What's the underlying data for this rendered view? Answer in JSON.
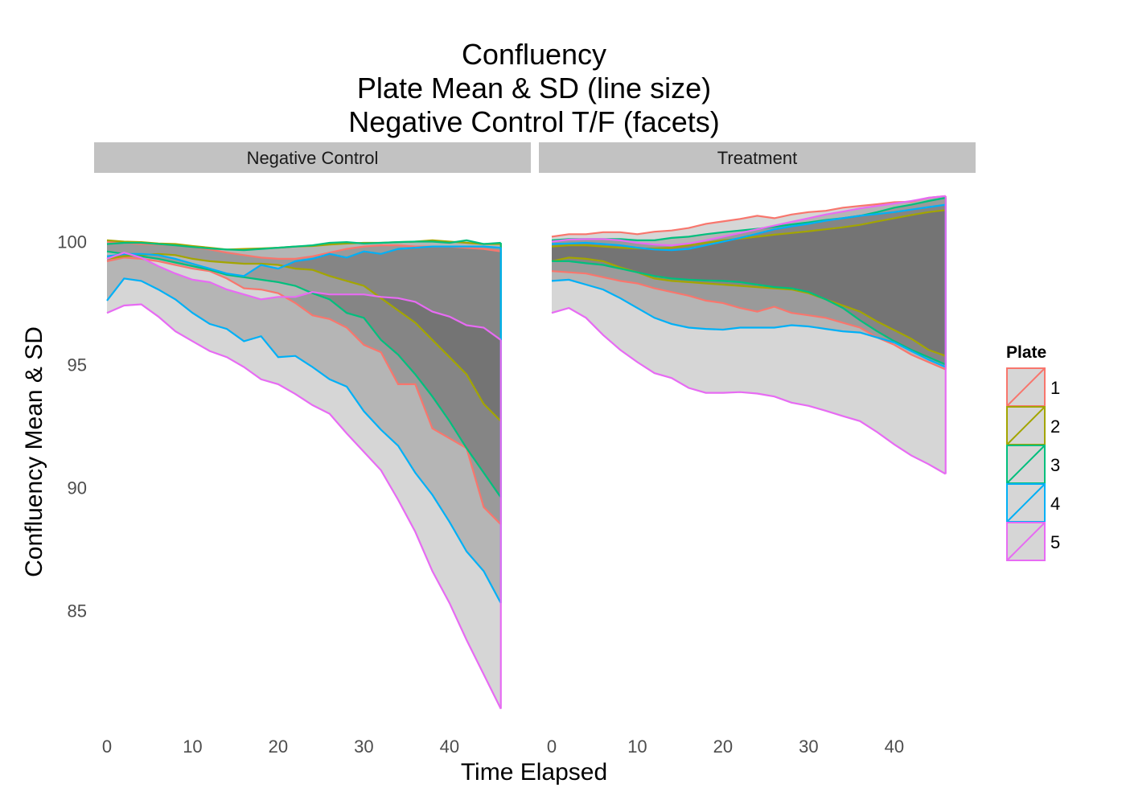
{
  "chart_data": {
    "type": "area",
    "title": [
      "Confluency",
      "Plate Mean & SD (line size)",
      "Negative Control T/F (facets)"
    ],
    "xlabel": "Time Elapsed",
    "ylabel": "Confluency Mean & SD",
    "xlim": [
      -1.5,
      49.5
    ],
    "ylim": [
      80.4,
      102.5
    ],
    "x_ticks": [
      0,
      10,
      20,
      30,
      40
    ],
    "y_ticks": [
      85,
      90,
      95,
      100
    ],
    "grid": false,
    "legend": {
      "title": "Plate",
      "position": "right",
      "items": [
        {
          "label": "1",
          "color": "#F8766D"
        },
        {
          "label": "2",
          "color": "#A3A500"
        },
        {
          "label": "3",
          "color": "#00BF7D"
        },
        {
          "label": "4",
          "color": "#00B0F6"
        },
        {
          "label": "5",
          "color": "#E76BF3"
        }
      ]
    },
    "x": [
      0,
      2,
      4,
      6,
      8,
      10,
      12,
      14,
      16,
      18,
      20,
      22,
      24,
      26,
      28,
      30,
      32,
      34,
      36,
      38,
      40,
      42,
      44,
      46
    ],
    "facets": [
      {
        "label": "Negative Control",
        "series": [
          {
            "name": "1",
            "color": "#F8766D",
            "upper": [
              100.0,
              99.95,
              99.9,
              99.88,
              99.85,
              99.78,
              99.68,
              99.55,
              99.45,
              99.35,
              99.3,
              99.3,
              99.4,
              99.55,
              99.7,
              99.8,
              99.85,
              99.85,
              99.8,
              99.8,
              99.8,
              99.75,
              99.7,
              99.6
            ],
            "lower": [
              99.2,
              99.35,
              99.3,
              99.2,
              99.05,
              98.9,
              98.8,
              98.5,
              98.1,
              98.05,
              97.9,
              97.5,
              97.0,
              96.85,
              96.5,
              95.8,
              95.5,
              94.2,
              94.2,
              92.4,
              92.0,
              91.6,
              89.2,
              88.5
            ]
          },
          {
            "name": "2",
            "color": "#A3A500",
            "upper": [
              100.05,
              100.0,
              99.98,
              99.92,
              99.9,
              99.82,
              99.75,
              99.68,
              99.7,
              99.72,
              99.75,
              99.8,
              99.82,
              99.88,
              99.92,
              99.95,
              99.95,
              99.98,
              100.0,
              100.05,
              100.0,
              99.95,
              99.9,
              99.9
            ],
            "lower": [
              99.3,
              99.4,
              99.45,
              99.5,
              99.45,
              99.3,
              99.2,
              99.15,
              99.1,
              99.1,
              99.05,
              98.9,
              98.85,
              98.6,
              98.4,
              98.2,
              97.7,
              97.2,
              96.7,
              96.0,
              95.3,
              94.6,
              93.4,
              92.7
            ]
          },
          {
            "name": "3",
            "color": "#00BF7D",
            "upper": [
              99.9,
              99.95,
              99.95,
              99.9,
              99.85,
              99.78,
              99.72,
              99.68,
              99.65,
              99.7,
              99.75,
              99.8,
              99.85,
              99.95,
              99.98,
              99.92,
              99.95,
              99.98,
              100.0,
              100.0,
              99.95,
              100.05,
              99.9,
              99.95
            ],
            "lower": [
              99.6,
              99.5,
              99.4,
              99.3,
              99.15,
              99.0,
              98.85,
              98.65,
              98.55,
              98.45,
              98.35,
              98.2,
              97.9,
              97.65,
              97.1,
              96.9,
              96.0,
              95.4,
              94.6,
              93.7,
              92.7,
              91.6,
              90.6,
              89.6
            ]
          },
          {
            "name": "4",
            "color": "#00B0F6",
            "upper": [
              99.4,
              99.5,
              99.5,
              99.45,
              99.3,
              99.1,
              98.9,
              98.7,
              98.6,
              99.05,
              98.9,
              99.2,
              99.3,
              99.5,
              99.35,
              99.6,
              99.5,
              99.7,
              99.75,
              99.8,
              99.8,
              99.8,
              99.8,
              99.75
            ],
            "lower": [
              97.6,
              98.5,
              98.4,
              98.05,
              97.65,
              97.1,
              96.65,
              96.45,
              95.95,
              96.15,
              95.3,
              95.35,
              94.9,
              94.4,
              94.1,
              93.1,
              92.35,
              91.7,
              90.6,
              89.7,
              88.6,
              87.4,
              86.6,
              85.3
            ]
          },
          {
            "name": "5",
            "color": "#E76BF3",
            "upper": [
              99.3,
              99.55,
              99.35,
              99.0,
              98.7,
              98.45,
              98.35,
              98.05,
              97.85,
              97.65,
              97.75,
              97.75,
              97.95,
              97.85,
              97.85,
              97.85,
              97.75,
              97.7,
              97.55,
              97.15,
              96.95,
              96.6,
              96.5,
              96.0
            ],
            "lower": [
              97.1,
              97.4,
              97.45,
              96.95,
              96.35,
              95.95,
              95.55,
              95.3,
              94.9,
              94.4,
              94.2,
              93.8,
              93.35,
              93.0,
              92.2,
              91.45,
              90.7,
              89.5,
              88.2,
              86.6,
              85.3,
              83.8,
              82.4,
              81.0
            ]
          }
        ]
      },
      {
        "label": "Treatment",
        "series": [
          {
            "name": "1",
            "color": "#F8766D",
            "upper": [
              100.2,
              100.3,
              100.3,
              100.38,
              100.38,
              100.3,
              100.4,
              100.45,
              100.55,
              100.72,
              100.82,
              100.92,
              101.05,
              100.95,
              101.1,
              101.2,
              101.25,
              101.38,
              101.45,
              101.52,
              101.6,
              101.62,
              101.78,
              101.85
            ],
            "lower": [
              98.8,
              98.75,
              98.7,
              98.55,
              98.4,
              98.3,
              98.1,
              97.95,
              97.8,
              97.6,
              97.5,
              97.3,
              97.15,
              97.35,
              97.1,
              97.0,
              96.9,
              96.7,
              96.5,
              96.1,
              95.8,
              95.4,
              95.1,
              94.8
            ]
          },
          {
            "name": "2",
            "color": "#A3A500",
            "upper": [
              99.8,
              99.85,
              99.85,
              99.8,
              99.75,
              99.72,
              99.72,
              99.75,
              99.85,
              99.95,
              100.05,
              100.12,
              100.2,
              100.28,
              100.35,
              100.42,
              100.5,
              100.58,
              100.68,
              100.82,
              100.95,
              101.08,
              101.2,
              101.28
            ],
            "lower": [
              99.2,
              99.35,
              99.3,
              99.2,
              98.95,
              98.75,
              98.5,
              98.4,
              98.35,
              98.3,
              98.25,
              98.2,
              98.15,
              98.1,
              98.05,
              97.9,
              97.65,
              97.4,
              97.15,
              96.75,
              96.4,
              96.05,
              95.6,
              95.35
            ]
          },
          {
            "name": "3",
            "color": "#00BF7D",
            "upper": [
              100.05,
              100.1,
              100.1,
              100.1,
              100.1,
              100.05,
              100.05,
              100.15,
              100.2,
              100.3,
              100.38,
              100.45,
              100.52,
              100.6,
              100.7,
              100.78,
              100.88,
              100.95,
              101.05,
              101.2,
              101.38,
              101.5,
              101.65,
              101.78
            ],
            "lower": [
              99.2,
              99.2,
              99.12,
              99.05,
              98.9,
              98.75,
              98.6,
              98.5,
              98.45,
              98.42,
              98.4,
              98.35,
              98.25,
              98.15,
              98.1,
              97.95,
              97.65,
              97.3,
              96.8,
              96.35,
              95.95,
              95.6,
              95.3,
              95.0
            ]
          },
          {
            "name": "4",
            "color": "#00B0F6",
            "upper": [
              99.9,
              99.92,
              99.95,
              99.9,
              99.85,
              99.75,
              99.68,
              99.65,
              99.7,
              99.85,
              100.0,
              100.15,
              100.32,
              100.5,
              100.62,
              100.72,
              100.85,
              100.95,
              101.05,
              101.12,
              101.2,
              101.3,
              101.4,
              101.5
            ],
            "lower": [
              98.4,
              98.45,
              98.25,
              98.05,
              97.7,
              97.3,
              96.9,
              96.65,
              96.5,
              96.45,
              96.42,
              96.5,
              96.5,
              96.5,
              96.6,
              96.55,
              96.45,
              96.35,
              96.3,
              96.1,
              95.9,
              95.55,
              95.2,
              94.9
            ]
          },
          {
            "name": "5",
            "color": "#E76BF3",
            "upper": [
              100.0,
              100.08,
              100.1,
              100.1,
              100.05,
              99.95,
              99.88,
              99.85,
              99.92,
              100.05,
              100.2,
              100.35,
              100.5,
              100.65,
              100.8,
              100.95,
              101.1,
              101.22,
              101.35,
              101.45,
              101.55,
              101.65,
              101.78,
              101.85
            ],
            "lower": [
              97.1,
              97.3,
              96.9,
              96.2,
              95.6,
              95.1,
              94.65,
              94.45,
              94.05,
              93.85,
              93.85,
              93.88,
              93.82,
              93.7,
              93.45,
              93.32,
              93.12,
              92.9,
              92.7,
              92.25,
              91.75,
              91.3,
              90.95,
              90.55
            ]
          }
        ]
      }
    ]
  }
}
